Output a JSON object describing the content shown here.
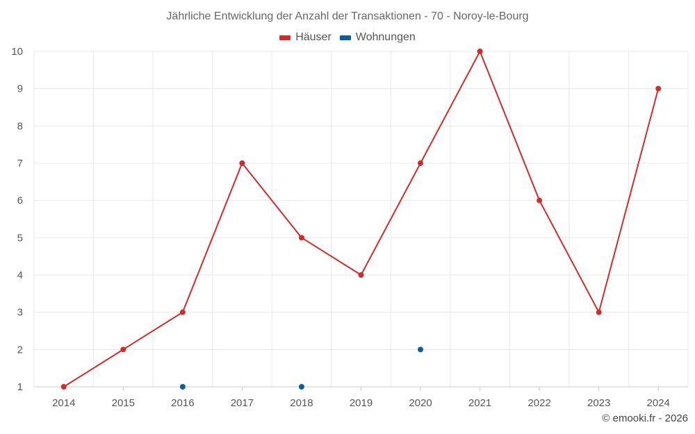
{
  "chart_data": {
    "type": "line",
    "title": "Jährliche Entwicklung der Anzahl der Transaktionen - 70 - Noroy-le-Bourg",
    "categories": [
      "2014",
      "2015",
      "2016",
      "2017",
      "2018",
      "2019",
      "2020",
      "2021",
      "2022",
      "2023",
      "2024"
    ],
    "yticks": [
      "1",
      "2",
      "3",
      "4",
      "5",
      "6",
      "7",
      "8",
      "9",
      "10"
    ],
    "ylim": [
      1,
      10
    ],
    "grid": true,
    "legend_position": "top-center",
    "series": [
      {
        "name": "Häuser",
        "color": "#d32a2a",
        "line": true,
        "values": [
          1,
          2,
          3,
          7,
          5,
          4,
          7,
          10,
          6,
          3,
          9
        ]
      },
      {
        "name": "Wohnungen",
        "color": "#0a5fa0",
        "line": false,
        "values": [
          null,
          null,
          1,
          null,
          1,
          null,
          2,
          null,
          null,
          null,
          null
        ]
      }
    ]
  },
  "footer": {
    "copyright": "© emooki.fr - 2026"
  }
}
